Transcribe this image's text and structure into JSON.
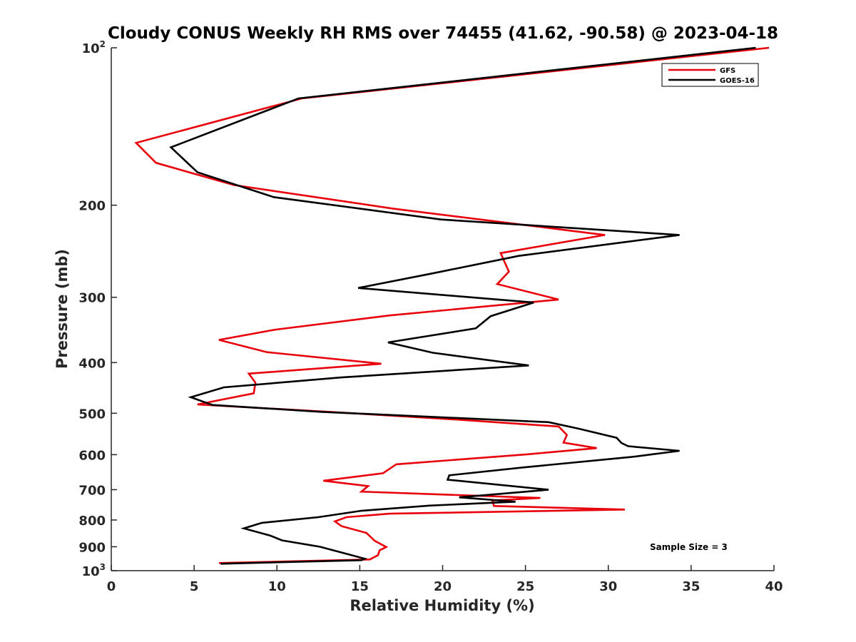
{
  "chart_data": {
    "type": "line",
    "title": "Cloudy CONUS Weekly RH RMS over 74455 (41.62, -90.58) @ 2023-04-18",
    "xlabel": "Relative Humidity (%)",
    "ylabel": "Pressure (mb)",
    "xlim": [
      0,
      40
    ],
    "ylim": [
      100,
      1000
    ],
    "yscale": "log",
    "y_reversed": true,
    "grid": false,
    "legend_position": "top-right",
    "annotation": "Sample Size = 3",
    "x_ticks": [
      "0",
      "5",
      "10",
      "15",
      "20",
      "25",
      "30",
      "35",
      "40"
    ],
    "y_ticks": [
      {
        "value": 100,
        "base": "10",
        "exp": "2"
      },
      {
        "value": 200,
        "label": "200"
      },
      {
        "value": 300,
        "label": "300"
      },
      {
        "value": 400,
        "label": "400"
      },
      {
        "value": 500,
        "label": "500"
      },
      {
        "value": 600,
        "label": "600"
      },
      {
        "value": 700,
        "label": "700"
      },
      {
        "value": 800,
        "label": "800"
      },
      {
        "value": 900,
        "label": "900"
      },
      {
        "value": 1000,
        "base": "10",
        "exp": "3"
      }
    ],
    "series": [
      {
        "name": "GFS",
        "color": "#e8000b",
        "points": [
          [
            39.7,
            100
          ],
          [
            11.5,
            125
          ],
          [
            1.5,
            152
          ],
          [
            2.7,
            166
          ],
          [
            7.4,
            183
          ],
          [
            17,
            203
          ],
          [
            29.8,
            228
          ],
          [
            23.5,
            247
          ],
          [
            24,
            268
          ],
          [
            23.3,
            283
          ],
          [
            27,
            303
          ],
          [
            16.8,
            325
          ],
          [
            9.9,
            346
          ],
          [
            6.5,
            362
          ],
          [
            9.4,
            382
          ],
          [
            16.3,
            402
          ],
          [
            8.3,
            420
          ],
          [
            8.7,
            437
          ],
          [
            8.6,
            458
          ],
          [
            5.2,
            481
          ],
          [
            13.2,
            497
          ],
          [
            20.8,
            514
          ],
          [
            27,
            530
          ],
          [
            27.5,
            550
          ],
          [
            27.3,
            569
          ],
          [
            29.3,
            583
          ],
          [
            25.1,
            599
          ],
          [
            17.2,
            626
          ],
          [
            16.4,
            651
          ],
          [
            12.8,
            673
          ],
          [
            15.5,
            689
          ],
          [
            15.1,
            706
          ],
          [
            25.9,
            726
          ],
          [
            23,
            734
          ],
          [
            23.1,
            752
          ],
          [
            31,
            764
          ],
          [
            16.8,
            778
          ],
          [
            14.2,
            790
          ],
          [
            13.5,
            805
          ],
          [
            13.9,
            822
          ],
          [
            15.4,
            847
          ],
          [
            15.9,
            877
          ],
          [
            16.6,
            901
          ],
          [
            16.2,
            914
          ],
          [
            16.1,
            934
          ],
          [
            15.6,
            952
          ],
          [
            6.5,
            967
          ]
        ]
      },
      {
        "name": "GOES-16",
        "color": "#000000",
        "points": [
          [
            38.9,
            100
          ],
          [
            11.3,
            125
          ],
          [
            3.6,
            155
          ],
          [
            5.2,
            173
          ],
          [
            9.8,
            193
          ],
          [
            19.9,
            213
          ],
          [
            34.3,
            228
          ],
          [
            24.6,
            250
          ],
          [
            19.4,
            270
          ],
          [
            14.9,
            288
          ],
          [
            25.5,
            307
          ],
          [
            22.9,
            326
          ],
          [
            22,
            344
          ],
          [
            16.7,
            366
          ],
          [
            19.4,
            383
          ],
          [
            25.2,
            405
          ],
          [
            13.9,
            427
          ],
          [
            6.8,
            446
          ],
          [
            4.8,
            466
          ],
          [
            6.1,
            482
          ],
          [
            12.7,
            497
          ],
          [
            26.4,
            520
          ],
          [
            28.2,
            535
          ],
          [
            30.5,
            557
          ],
          [
            30.8,
            570
          ],
          [
            31.2,
            578
          ],
          [
            34.3,
            590
          ],
          [
            31.4,
            606
          ],
          [
            24.8,
            635
          ],
          [
            20.4,
            657
          ],
          [
            20.3,
            670
          ],
          [
            26.4,
            700
          ],
          [
            21,
            724
          ],
          [
            24.4,
            738
          ],
          [
            19.2,
            751
          ],
          [
            15.1,
            768
          ],
          [
            12.5,
            790
          ],
          [
            9.1,
            810
          ],
          [
            8,
            830
          ],
          [
            9.6,
            857
          ],
          [
            10.3,
            875
          ],
          [
            12.6,
            900
          ],
          [
            14.5,
            934
          ],
          [
            15.3,
            949
          ],
          [
            15.1,
            955
          ],
          [
            6.6,
            970
          ]
        ]
      }
    ]
  }
}
